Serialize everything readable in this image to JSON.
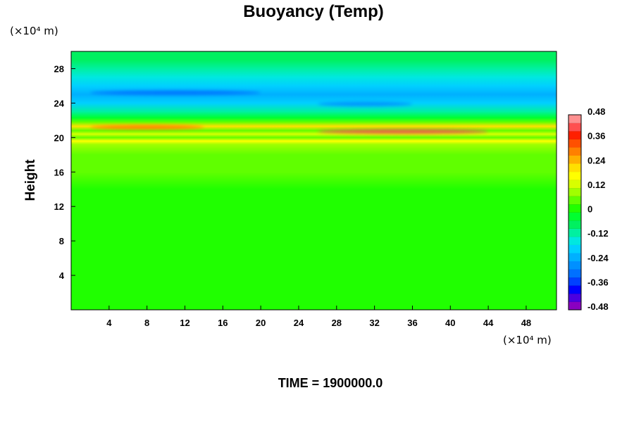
{
  "chart_data": {
    "type": "heatmap",
    "title": "Buoyancy (Temp)",
    "xlabel": "",
    "ylabel": "Height",
    "x_unit": "(×10⁴ m)",
    "y_unit": "(×10⁴ m)",
    "footer": "TIME = 1900000.0",
    "xlim": [
      0,
      51.2
    ],
    "ylim": [
      0,
      30
    ],
    "x_ticks": [
      4,
      8,
      12,
      16,
      20,
      24,
      28,
      32,
      36,
      40,
      44,
      48
    ],
    "y_ticks": [
      4,
      8,
      12,
      16,
      20,
      24,
      28
    ],
    "colorbar": {
      "ticks": [
        0.48,
        0.36,
        0.24,
        0.12,
        0,
        -0.12,
        -0.24,
        -0.36,
        -0.48
      ],
      "range": [
        -0.48,
        0.48
      ],
      "colors": [
        "#8a00c0",
        "#4b00e0",
        "#0000ff",
        "#0040ff",
        "#0070ff",
        "#0090ff",
        "#00b0ff",
        "#00d0ff",
        "#00e8e0",
        "#00f0a0",
        "#00f060",
        "#00ff30",
        "#20ff00",
        "#60ff00",
        "#a0ff00",
        "#d8ff00",
        "#ffff00",
        "#ffe000",
        "#ffb000",
        "#ff8000",
        "#ff5000",
        "#ff2000",
        "#ff5050",
        "#ff9090"
      ]
    },
    "profile": [
      {
        "h": 0,
        "v": 0.0
      },
      {
        "h": 10,
        "v": 0.0
      },
      {
        "h": 12,
        "v": 0.02
      },
      {
        "h": 14,
        "v": 0.03
      },
      {
        "h": 16,
        "v": 0.04
      },
      {
        "h": 18,
        "v": 0.06
      },
      {
        "h": 19.2,
        "v": 0.1
      },
      {
        "h": 19.6,
        "v": 0.18
      },
      {
        "h": 20.0,
        "v": 0.06
      },
      {
        "h": 20.4,
        "v": 0.14
      },
      {
        "h": 20.8,
        "v": 0.04
      },
      {
        "h": 21.3,
        "v": 0.2
      },
      {
        "h": 21.8,
        "v": 0.06
      },
      {
        "h": 22.3,
        "v": -0.04
      },
      {
        "h": 23.0,
        "v": -0.12
      },
      {
        "h": 24.0,
        "v": -0.18
      },
      {
        "h": 25.0,
        "v": -0.22
      },
      {
        "h": 26.0,
        "v": -0.18
      },
      {
        "h": 27.0,
        "v": -0.13
      },
      {
        "h": 28.0,
        "v": -0.1
      },
      {
        "h": 29.0,
        "v": -0.08
      },
      {
        "h": 30.0,
        "v": -0.06
      }
    ],
    "features": [
      {
        "name": "warm band",
        "x": [
          2,
          14
        ],
        "h": 21.2,
        "v": 0.3
      },
      {
        "name": "warm band",
        "x": [
          26,
          44
        ],
        "h": 20.7,
        "v": 0.4
      },
      {
        "name": "cold band",
        "x": [
          2,
          20
        ],
        "h": 25.2,
        "v": -0.28
      },
      {
        "name": "cold band",
        "x": [
          26,
          36
        ],
        "h": 23.9,
        "v": -0.26
      }
    ]
  }
}
